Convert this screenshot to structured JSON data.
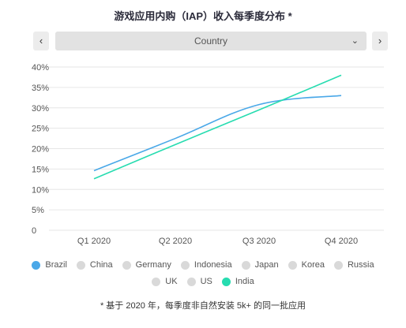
{
  "title": "游戏应用内购（IAP）收入每季度分布 *",
  "nav": {
    "prev": "‹",
    "next": "›"
  },
  "selector": {
    "value": "Country",
    "chevron": "⌄"
  },
  "footnote": "* 基于 2020 年，每季度非自然安装 5k+ 的同一批应用",
  "colors": {
    "brazil": "#4aa8e8",
    "india": "#27dcb0",
    "inactive": "#d9d9d9",
    "grid": "#e6e6e6",
    "axis_text": "#555555"
  },
  "legend_rows": [
    [
      {
        "label": "Brazil",
        "color": "#4aa8e8"
      },
      {
        "label": "China",
        "color": "#d9d9d9"
      },
      {
        "label": "Germany",
        "color": "#d9d9d9"
      },
      {
        "label": "Indonesia",
        "color": "#d9d9d9"
      },
      {
        "label": "Japan",
        "color": "#d9d9d9"
      },
      {
        "label": "Korea",
        "color": "#d9d9d9"
      },
      {
        "label": "Russia",
        "color": "#d9d9d9"
      }
    ],
    [
      {
        "label": "UK",
        "color": "#d9d9d9"
      },
      {
        "label": "US",
        "color": "#d9d9d9"
      },
      {
        "label": "India",
        "color": "#27dcb0"
      }
    ]
  ],
  "chart_data": {
    "type": "line",
    "categories": [
      "Q1 2020",
      "Q2 2020",
      "Q3 2020",
      "Q4 2020"
    ],
    "ylim": [
      0,
      40
    ],
    "yticks": [
      "0",
      "5%",
      "10%",
      "15%",
      "20%",
      "25%",
      "30%",
      "35%",
      "40%"
    ],
    "grid": true,
    "series": [
      {
        "name": "Brazil",
        "color": "#4aa8e8",
        "values": [
          14.6,
          22.5,
          30.8,
          33.0
        ]
      },
      {
        "name": "India",
        "color": "#27dcb0",
        "values": [
          12.6,
          21.0,
          29.5,
          38.0
        ]
      }
    ]
  }
}
